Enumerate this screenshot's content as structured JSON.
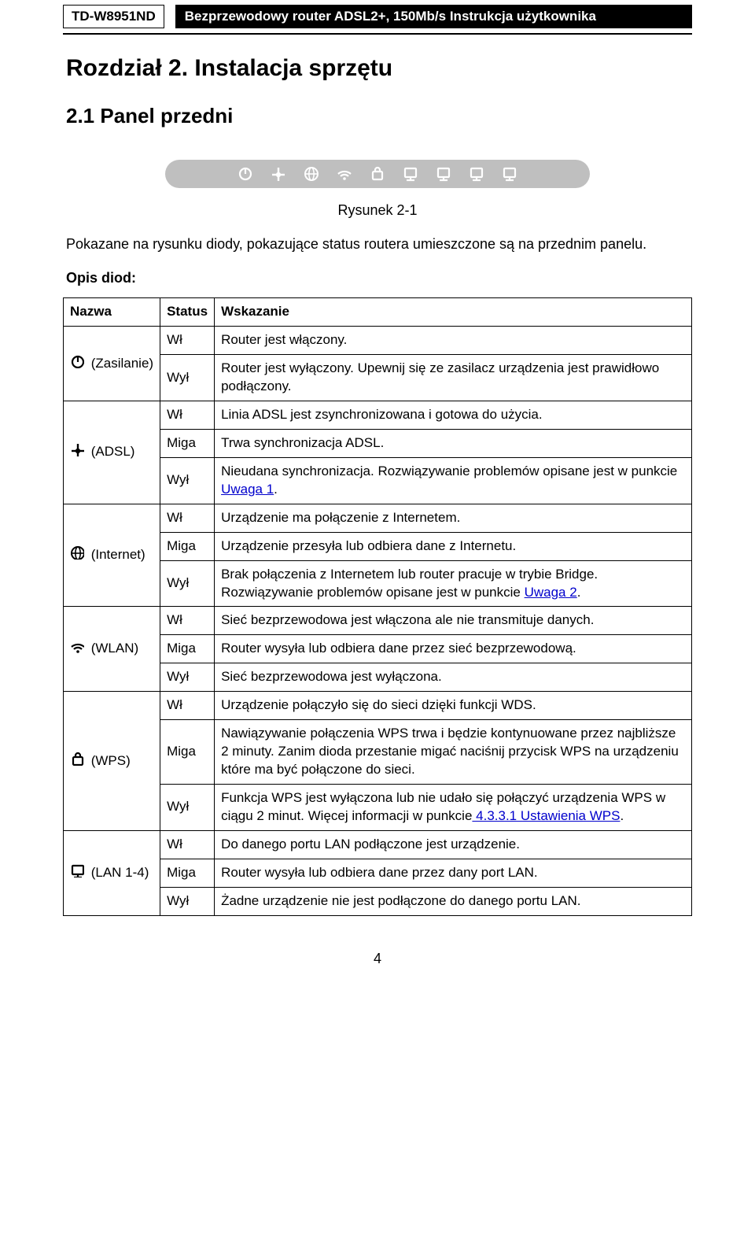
{
  "header": {
    "model": "TD-W8951ND",
    "title": "Bezprzewodowy router ADSL2+, 150Mb/s Instrukcja użytkownika"
  },
  "chapter_title": "Rozdział 2. Instalacja sprzętu",
  "section_title": "2.1   Panel przedni",
  "figure_caption": "Rysunek 2-1",
  "intro_text": "Pokazane na rysunku diody, pokazujące status routera umieszczone są na przednim panelu.",
  "opis_label": "Opis diod:",
  "table": {
    "headers": {
      "name": "Nazwa",
      "status": "Status",
      "indication": "Wskazanie"
    },
    "groups": [
      {
        "icon": "power",
        "label": "(Zasilanie)",
        "rows": [
          {
            "status": "Wł",
            "text": "Router jest włączony."
          },
          {
            "status": "Wył",
            "text": "Router jest wyłączony. Upewnij się ze zasilacz urządzenia jest prawidłowo podłączony."
          }
        ]
      },
      {
        "icon": "adsl",
        "label": "(ADSL)",
        "rows": [
          {
            "status": "Wł",
            "text": "Linia ADSL jest zsynchronizowana i gotowa do użycia."
          },
          {
            "status": "Miga",
            "text": "Trwa synchronizacja ADSL."
          },
          {
            "status": "Wył",
            "text_pre": "Nieudana synchronizacja. Rozwiązywanie problemów opisane jest w punkcie ",
            "link": "Uwaga 1",
            "text_post": "."
          }
        ]
      },
      {
        "icon": "internet",
        "label": "(Internet)",
        "rows": [
          {
            "status": "Wł",
            "text": "Urządzenie ma połączenie z Internetem."
          },
          {
            "status": "Miga",
            "text": "Urządzenie przesyła lub odbiera dane z Internetu."
          },
          {
            "status": "Wył",
            "text_pre": "Brak połączenia z Internetem lub router pracuje w trybie Bridge. Rozwiązywanie problemów opisane jest w punkcie ",
            "link": "Uwaga 2",
            "text_post": "."
          }
        ]
      },
      {
        "icon": "wlan",
        "label": "(WLAN)",
        "rows": [
          {
            "status": "Wł",
            "text": "Sieć bezprzewodowa jest włączona ale nie transmituje danych."
          },
          {
            "status": "Miga",
            "text": "Router wysyła lub odbiera dane przez sieć bezprzewodową."
          },
          {
            "status": "Wył",
            "text": "Sieć bezprzewodowa jest wyłączona."
          }
        ]
      },
      {
        "icon": "wps",
        "label": "(WPS)",
        "rows": [
          {
            "status": "Wł",
            "text": "Urządzenie połączyło się do sieci dzięki funkcji WDS."
          },
          {
            "status": "Miga",
            "text": "Nawiązywanie połączenia WPS trwa i będzie kontynuowane przez najbliższe 2 minuty. Zanim dioda przestanie migać naciśnij przycisk WPS na urządzeniu które ma być połączone do sieci."
          },
          {
            "status": "Wył",
            "text_pre": "Funkcja WPS jest wyłączona lub nie udało się połączyć urządzenia WPS w ciągu 2 minut. Więcej informacji w punkcie",
            "link": " 4.3.3.1 Ustawienia WPS",
            "text_post": "."
          }
        ]
      },
      {
        "icon": "lan",
        "label": "(LAN 1-4)",
        "rows": [
          {
            "status": "Wł",
            "text": "Do danego portu LAN podłączone jest urządzenie."
          },
          {
            "status": "Miga",
            "text": "Router wysyła lub odbiera dane przez dany port LAN."
          },
          {
            "status": "Wył",
            "text": "Żadne urządzenie nie jest podłączone do danego portu LAN."
          }
        ]
      }
    ]
  },
  "page_number": "4",
  "colors": {
    "link": "#0000cc",
    "panel_bg": "#bfbfbf",
    "icon_fill": "#ffffff",
    "table_icon": "#000000"
  }
}
